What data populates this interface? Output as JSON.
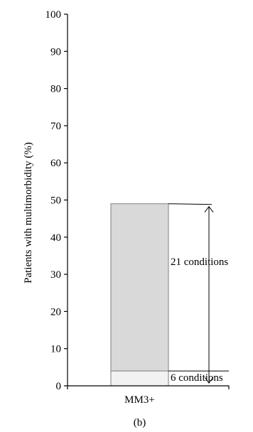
{
  "chart_data": {
    "type": "bar",
    "stacked": true,
    "ylabel": "Patients with multimorbidity (%)",
    "ylim": [
      0,
      100
    ],
    "yticks": [
      0,
      10,
      20,
      30,
      40,
      50,
      60,
      70,
      80,
      90,
      100
    ],
    "categories": [
      "MM3+"
    ],
    "series": [
      {
        "values": [
          4
        ],
        "color": "#f2f2f2"
      },
      {
        "values": [
          45
        ],
        "color": "#d9d9d9"
      }
    ],
    "annotations": [
      {
        "text": "21 conditions",
        "y_range": [
          0,
          49
        ]
      },
      {
        "text": "6 conditions",
        "y_range": [
          0,
          4
        ]
      }
    ],
    "panel_label": "(b)",
    "grid": false
  }
}
